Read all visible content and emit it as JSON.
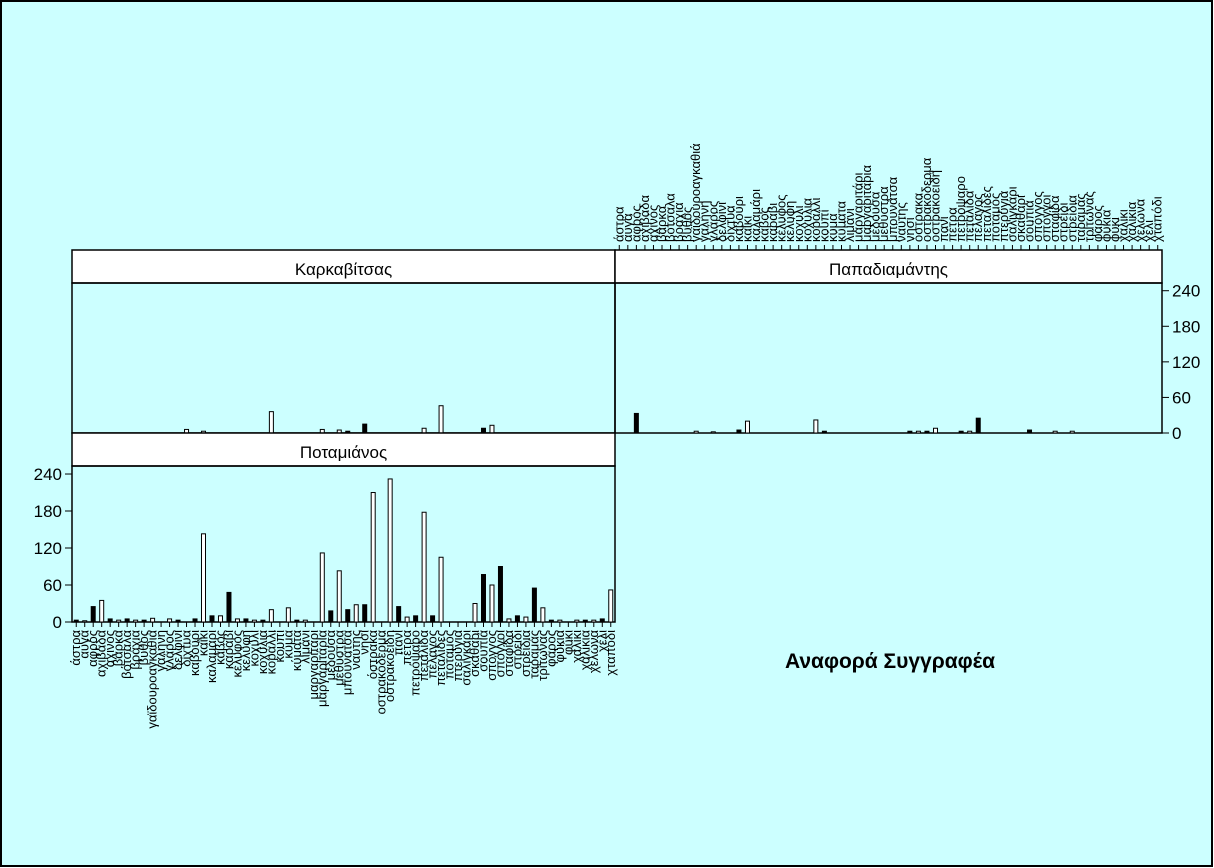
{
  "chart_data": {
    "type": "bar",
    "title": "Αναφορά Συγγραφέα",
    "categories": [
      "άστρα",
      "αυγά",
      "αφρός",
      "αχιβάδα",
      "αχινός",
      "βάρκα",
      "βότσαλα",
      "βράχια",
      "βυθός",
      "γαϊδουροαγκαθιά",
      "γαλήνη",
      "γλάρος",
      "δελφίνι",
      "δίχτυα",
      "καβούρι",
      "καΐκι",
      "καλαμάρι",
      "κάβος",
      "καράβι",
      "κέλυφος",
      "κελύφη",
      "κοχύλι",
      "κοχύλια",
      "κοράλλι",
      "κουπί",
      "κύμα",
      "κύματα",
      "λιμάνι",
      "μαργαριτάρι",
      "μαργαριτάρια",
      "μέδουσα",
      "μεθύστρα",
      "μπουνάτσα",
      "ναύτης",
      "νησί",
      "όστρακα",
      "οστρακόδερμα",
      "οστρακοειδή",
      "πανί",
      "πέτρα",
      "πετρόψαρο",
      "πεταλίδα",
      "πέλαγος",
      "πεταλίδες",
      "ποταμός",
      "πτερύγια",
      "σαλιγκάρι",
      "σκαθάρι",
      "σουπιά",
      "σπόγγος",
      "σπόγγοι",
      "σταφίδα",
      "στρείδι",
      "στρείδια",
      "ταραμάς",
      "τρίτωνας",
      "φάρος",
      "φύκια",
      "φύκι",
      "χαλίκι",
      "χαλίκια",
      "χελώνα",
      "χέλι",
      "χταπόδι"
    ],
    "series": [
      {
        "name": "Καρκαβίτσας",
        "color": "#000000",
        "values": [
          0,
          0,
          0,
          0,
          0,
          0,
          0,
          0,
          0,
          0,
          0,
          0,
          0,
          6,
          0,
          3,
          0,
          0,
          0,
          0,
          0,
          0,
          0,
          36,
          0,
          0,
          0,
          0,
          0,
          6,
          0,
          5,
          3,
          0,
          15,
          0,
          0,
          0,
          0,
          0,
          0,
          8,
          0,
          46,
          0,
          0,
          0,
          0,
          8,
          13,
          0,
          0,
          0,
          0,
          0,
          0,
          0,
          0,
          0,
          0,
          0,
          0,
          0,
          0
        ]
      },
      {
        "name": "Παπαδιαμάντης",
        "color": "#000000",
        "values": [
          0,
          0,
          33,
          0,
          0,
          0,
          0,
          0,
          0,
          3,
          0,
          2,
          0,
          0,
          5,
          20,
          0,
          0,
          0,
          0,
          0,
          0,
          0,
          22,
          3,
          0,
          0,
          0,
          0,
          0,
          0,
          0,
          0,
          0,
          3,
          3,
          3,
          8,
          0,
          0,
          3,
          3,
          25,
          0,
          0,
          0,
          0,
          0,
          5,
          0,
          0,
          3,
          0,
          3,
          0,
          0,
          0,
          0,
          0,
          0,
          0,
          0,
          0,
          0
        ]
      },
      {
        "name": "Ποταμιάνος",
        "color": "#000000",
        "values": [
          3,
          2,
          25,
          35,
          5,
          3,
          5,
          3,
          3,
          6,
          0,
          5,
          3,
          0,
          5,
          143,
          10,
          10,
          48,
          5,
          5,
          3,
          3,
          20,
          0,
          23,
          3,
          3,
          0,
          112,
          18,
          83,
          20,
          28,
          28,
          210,
          0,
          232,
          25,
          8,
          10,
          178,
          10,
          105,
          0,
          0,
          0,
          30,
          77,
          60,
          90,
          5,
          10,
          8,
          55,
          23,
          3,
          3,
          0,
          3,
          3,
          3,
          5,
          52
        ]
      }
    ],
    "ylim": [
      0,
      253
    ],
    "yticks": [
      0,
      60,
      120,
      180,
      240
    ]
  }
}
